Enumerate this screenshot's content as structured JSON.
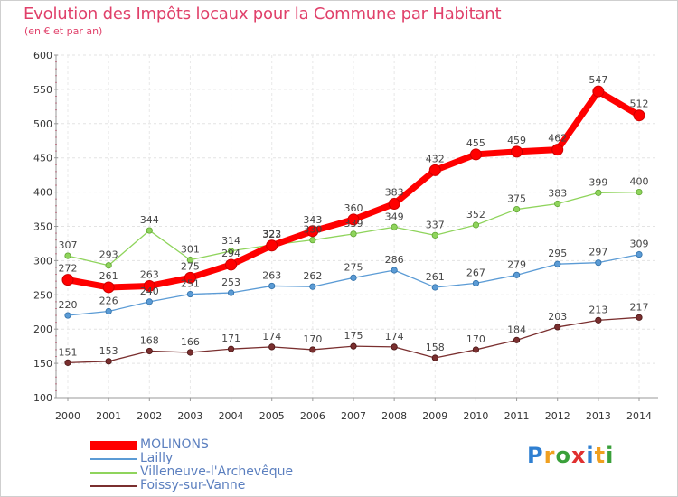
{
  "chart_data": {
    "type": "line",
    "title": "Evolution des Impôts locaux pour la Commune par Habitant",
    "subtitle": "(en € et par an)",
    "xlabel": "",
    "ylabel": "",
    "ylim": [
      100,
      600
    ],
    "yticks": [
      100,
      150,
      200,
      250,
      300,
      350,
      400,
      450,
      500,
      550,
      600
    ],
    "x": [
      "2000",
      "2001",
      "2002",
      "2003",
      "2004",
      "2005",
      "2006",
      "2007",
      "2008",
      "2009",
      "2010",
      "2011",
      "2012",
      "2013",
      "2014"
    ],
    "series": [
      {
        "name": "MOLINONS",
        "color": "#ff0000",
        "values": [
          272,
          261,
          263,
          275,
          294,
          322,
          343,
          360,
          383,
          432,
          455,
          459,
          462,
          547,
          512
        ]
      },
      {
        "name": "Lailly",
        "color": "#5b9bd5",
        "values": [
          220,
          226,
          240,
          251,
          253,
          263,
          262,
          275,
          286,
          261,
          267,
          279,
          295,
          297,
          309
        ]
      },
      {
        "name": "Villeneuve-l'Archevêque",
        "color": "#8fd45c",
        "values": [
          307,
          293,
          344,
          301,
          314,
          323,
          330,
          339,
          349,
          337,
          352,
          375,
          383,
          399,
          400
        ]
      },
      {
        "name": "Foissy-sur-Vanne",
        "color": "#7a2f2f",
        "values": [
          151,
          153,
          168,
          166,
          171,
          174,
          170,
          175,
          174,
          158,
          170,
          184,
          203,
          213,
          217
        ]
      }
    ]
  },
  "brand": {
    "letters": [
      "P",
      "r",
      "o",
      "x",
      "i",
      "t",
      "i"
    ],
    "colors": [
      "#2f7fd1",
      "#f0a020",
      "#3aa03a",
      "#e03030",
      "#2f7fd1",
      "#f0a020",
      "#3aa03a"
    ]
  }
}
